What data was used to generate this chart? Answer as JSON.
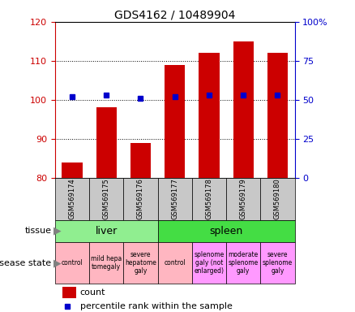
{
  "title": "GDS4162 / 10489904",
  "samples": [
    "GSM569174",
    "GSM569175",
    "GSM569176",
    "GSM569177",
    "GSM569178",
    "GSM569179",
    "GSM569180"
  ],
  "count_values": [
    84,
    98,
    89,
    109,
    112,
    115,
    112
  ],
  "percentile_values": [
    52,
    53,
    51,
    52,
    53,
    53,
    53
  ],
  "ylim_left": [
    80,
    120
  ],
  "ylim_right": [
    0,
    100
  ],
  "yticks_left": [
    80,
    90,
    100,
    110,
    120
  ],
  "yticks_right": [
    0,
    25,
    50,
    75,
    100
  ],
  "tissue_groups": [
    {
      "label": "liver",
      "start": 0,
      "end": 3,
      "color": "#90EE90"
    },
    {
      "label": "spleen",
      "start": 3,
      "end": 7,
      "color": "#44DD44"
    }
  ],
  "disease_states": [
    {
      "label": "control",
      "start": 0,
      "end": 1,
      "color": "#FFB6C1"
    },
    {
      "label": "mild hepa\ntomegaly",
      "start": 1,
      "end": 2,
      "color": "#FFB6C1"
    },
    {
      "label": "severe\nhepatome\ngaly",
      "start": 2,
      "end": 3,
      "color": "#FFB6C1"
    },
    {
      "label": "control",
      "start": 3,
      "end": 4,
      "color": "#FFB6C1"
    },
    {
      "label": "splenome\ngaly (not\nenlarged)",
      "start": 4,
      "end": 5,
      "color": "#FF99FF"
    },
    {
      "label": "moderate\nsplenome\ngaly",
      "start": 5,
      "end": 6,
      "color": "#FF99FF"
    },
    {
      "label": "severe\nsplenome\ngaly",
      "start": 6,
      "end": 7,
      "color": "#FF99FF"
    }
  ],
  "bar_color": "#CC0000",
  "dot_color": "#0000CC",
  "bar_width": 0.6,
  "left_axis_color": "#CC0000",
  "right_axis_color": "#0000CC",
  "background_color": "#FFFFFF",
  "label_tissue": "tissue",
  "label_disease": "disease state",
  "legend_count": "count",
  "legend_percentile": "percentile rank within the sample",
  "sample_box_color": "#C8C8C8"
}
